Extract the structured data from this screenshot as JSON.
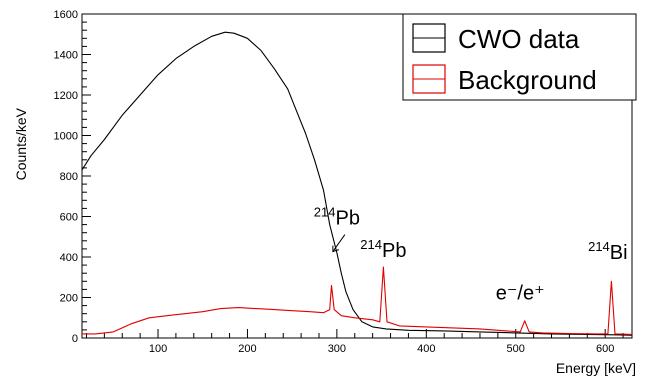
{
  "chart_data": {
    "type": "line",
    "xlabel": "Energy [keV]",
    "ylabel": "Counts/keV",
    "xlim": [
      15,
      630
    ],
    "ylim": [
      0,
      1600
    ],
    "xticks": [
      100,
      200,
      300,
      400,
      500,
      600
    ],
    "yticks": [
      0,
      200,
      400,
      600,
      800,
      1000,
      1200,
      1400,
      1600
    ],
    "grid": false,
    "legend_position": "top-right",
    "series": [
      {
        "name": "CWO data",
        "color": "#000000",
        "points": [
          [
            15,
            830
          ],
          [
            25,
            900
          ],
          [
            40,
            980
          ],
          [
            60,
            1100
          ],
          [
            80,
            1200
          ],
          [
            100,
            1300
          ],
          [
            120,
            1380
          ],
          [
            140,
            1440
          ],
          [
            160,
            1490
          ],
          [
            175,
            1510
          ],
          [
            185,
            1505
          ],
          [
            200,
            1480
          ],
          [
            215,
            1420
          ],
          [
            230,
            1330
          ],
          [
            245,
            1230
          ],
          [
            255,
            1120
          ],
          [
            265,
            1010
          ],
          [
            275,
            880
          ],
          [
            285,
            730
          ],
          [
            292,
            560
          ],
          [
            300,
            420
          ],
          [
            305,
            320
          ],
          [
            310,
            230
          ],
          [
            318,
            140
          ],
          [
            328,
            80
          ],
          [
            340,
            55
          ],
          [
            355,
            45
          ],
          [
            380,
            38
          ],
          [
            420,
            35
          ],
          [
            460,
            30
          ],
          [
            500,
            25
          ],
          [
            540,
            20
          ],
          [
            580,
            18
          ],
          [
            610,
            16
          ],
          [
            630,
            14
          ]
        ]
      },
      {
        "name": "Background",
        "color": "#e00000",
        "points": [
          [
            15,
            20
          ],
          [
            30,
            20
          ],
          [
            50,
            30
          ],
          [
            70,
            70
          ],
          [
            90,
            100
          ],
          [
            110,
            110
          ],
          [
            130,
            120
          ],
          [
            150,
            130
          ],
          [
            170,
            145
          ],
          [
            190,
            150
          ],
          [
            210,
            145
          ],
          [
            230,
            140
          ],
          [
            250,
            135
          ],
          [
            270,
            130
          ],
          [
            285,
            125
          ],
          [
            292,
            140
          ],
          [
            294,
            260
          ],
          [
            297,
            140
          ],
          [
            305,
            110
          ],
          [
            320,
            100
          ],
          [
            340,
            90
          ],
          [
            348,
            80
          ],
          [
            352,
            350
          ],
          [
            356,
            80
          ],
          [
            370,
            60
          ],
          [
            400,
            55
          ],
          [
            430,
            50
          ],
          [
            460,
            45
          ],
          [
            490,
            35
          ],
          [
            505,
            30
          ],
          [
            510,
            85
          ],
          [
            515,
            30
          ],
          [
            530,
            25
          ],
          [
            560,
            22
          ],
          [
            590,
            20
          ],
          [
            603,
            20
          ],
          [
            607,
            280
          ],
          [
            611,
            20
          ],
          [
            630,
            18
          ]
        ]
      }
    ],
    "annotations": [
      {
        "sup": "214",
        "text": "Pb",
        "x": 300,
        "y": 560
      },
      {
        "sup": "214",
        "text": "Pb",
        "x": 352,
        "y": 400
      },
      {
        "sup": "",
        "text": "e⁻/e⁺",
        "x": 505,
        "y": 190
      },
      {
        "sup": "214",
        "text": "Bi",
        "x": 603,
        "y": 390
      }
    ]
  }
}
